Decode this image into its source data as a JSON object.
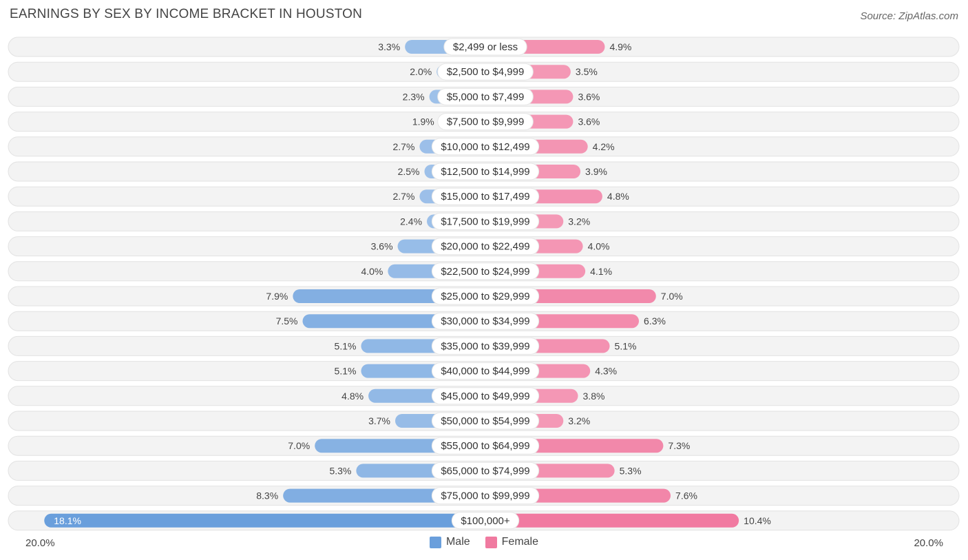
{
  "title": "EARNINGS BY SEX BY INCOME BRACKET IN HOUSTON",
  "source": "Source: ZipAtlas.com",
  "colors": {
    "male": "#a9c8ec",
    "male_strong": "#6a9fdc",
    "female": "#f5a7c0",
    "female_strong": "#f06b96",
    "row_bg": "#f2f2f2"
  },
  "legend": [
    {
      "name": "Male",
      "color": "#6a9fdc"
    },
    {
      "name": "Female",
      "color": "#f07aa0"
    }
  ],
  "axis": {
    "left_label": "20.0%",
    "right_label": "20.0%"
  },
  "chart_data": {
    "type": "bar",
    "orientation": "horizontal-diverging",
    "title": "EARNINGS BY SEX BY INCOME BRACKET IN HOUSTON",
    "xlim": [
      -20,
      20
    ],
    "categories": [
      "$2,499 or less",
      "$2,500 to $4,999",
      "$5,000 to $7,499",
      "$7,500 to $9,999",
      "$10,000 to $12,499",
      "$12,500 to $14,999",
      "$15,000 to $17,499",
      "$17,500 to $19,999",
      "$20,000 to $22,499",
      "$22,500 to $24,999",
      "$25,000 to $29,999",
      "$30,000 to $34,999",
      "$35,000 to $39,999",
      "$40,000 to $44,999",
      "$45,000 to $49,999",
      "$50,000 to $54,999",
      "$55,000 to $64,999",
      "$65,000 to $74,999",
      "$75,000 to $99,999",
      "$100,000+"
    ],
    "series": [
      {
        "name": "Male",
        "values": [
          3.3,
          2.0,
          2.3,
          1.9,
          2.7,
          2.5,
          2.7,
          2.4,
          3.6,
          4.0,
          7.9,
          7.5,
          5.1,
          5.1,
          4.8,
          3.7,
          7.0,
          5.3,
          8.3,
          18.1
        ]
      },
      {
        "name": "Female",
        "values": [
          4.9,
          3.5,
          3.6,
          3.6,
          4.2,
          3.9,
          4.8,
          3.2,
          4.0,
          4.1,
          7.0,
          6.3,
          5.1,
          4.3,
          3.8,
          3.2,
          7.3,
          5.3,
          7.6,
          10.4
        ]
      }
    ],
    "value_labels": {
      "Male": [
        "3.3%",
        "2.0%",
        "2.3%",
        "1.9%",
        "2.7%",
        "2.5%",
        "2.7%",
        "2.4%",
        "3.6%",
        "4.0%",
        "7.9%",
        "7.5%",
        "5.1%",
        "5.1%",
        "4.8%",
        "3.7%",
        "7.0%",
        "5.3%",
        "8.3%",
        "18.1%"
      ],
      "Female": [
        "4.9%",
        "3.5%",
        "3.6%",
        "3.6%",
        "4.2%",
        "3.9%",
        "4.8%",
        "3.2%",
        "4.0%",
        "4.1%",
        "7.0%",
        "6.3%",
        "5.1%",
        "4.3%",
        "3.8%",
        "3.2%",
        "7.3%",
        "5.3%",
        "7.6%",
        "10.4%"
      ]
    }
  }
}
